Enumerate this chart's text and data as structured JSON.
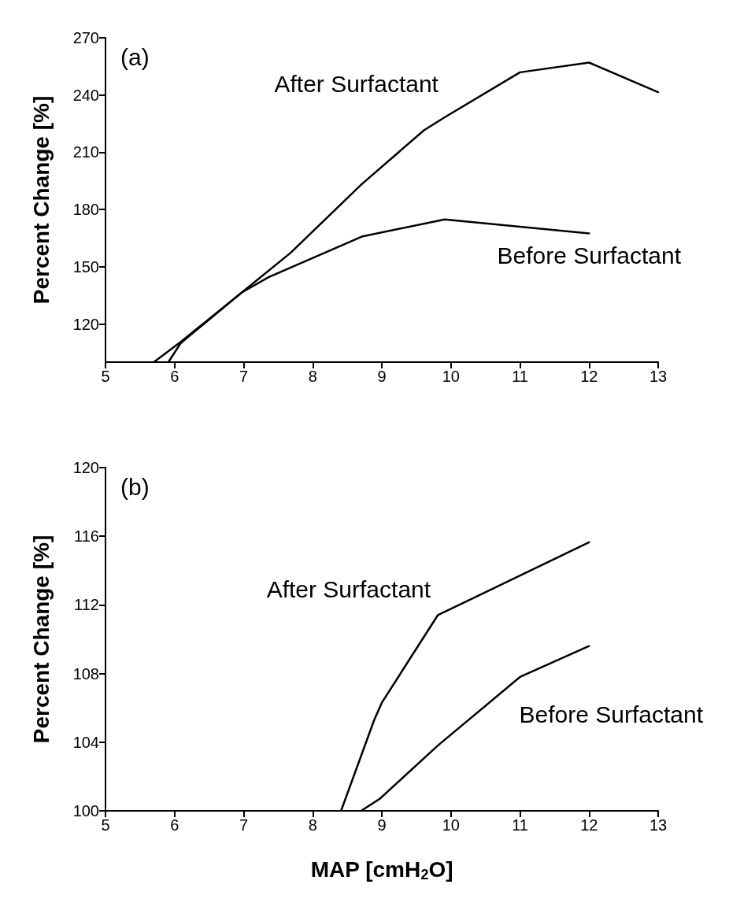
{
  "chart_data": [
    {
      "type": "line",
      "title": "(a)",
      "ylabel": "Percent Change [%]",
      "xlim": [
        5,
        13
      ],
      "xticks": [
        5,
        6,
        7,
        8,
        9,
        10,
        11,
        12,
        13
      ],
      "ylim": [
        100,
        270
      ],
      "yticks": [
        120,
        150,
        180,
        210,
        240,
        270
      ],
      "grid": false,
      "marker": "none",
      "line_style": "solid",
      "series": [
        {
          "name": "After Surfactant",
          "color": "#000000",
          "x": [
            5.91,
            6.09,
            6.97,
            7.68,
            8.71,
            9.61,
            9.91,
            11.0,
            12.0,
            13.0
          ],
          "values": [
            100,
            110,
            136.4,
            157.3,
            193.3,
            221.5,
            228.3,
            251.9,
            257,
            241.5
          ]
        },
        {
          "name": "Before Surfactant",
          "color": "#000000",
          "x": [
            5.7,
            6.09,
            6.97,
            7.36,
            8.71,
            9.91,
            12.0
          ],
          "values": [
            100,
            110.6,
            136.4,
            144.5,
            165.8,
            174.8,
            167.5
          ]
        }
      ]
    },
    {
      "type": "line",
      "title": "(b)",
      "xlabel": "MAP [cmH$_{2}$O]",
      "ylabel": "Percent Change [%]",
      "xlim": [
        5,
        13
      ],
      "xticks": [
        5,
        6,
        7,
        8,
        9,
        10,
        11,
        12,
        13
      ],
      "ylim": [
        100,
        120
      ],
      "yticks": [
        100,
        104,
        108,
        112,
        116,
        120
      ],
      "grid": false,
      "marker": "none",
      "line_style": "solid",
      "series": [
        {
          "name": "After Surfactant",
          "color": "#000000",
          "x": [
            8.41,
            8.89,
            9.0,
            9.81,
            12.0
          ],
          "values": [
            100,
            105.3,
            106.3,
            111.4,
            115.65
          ]
        },
        {
          "name": "Before Surfactant",
          "color": "#000000",
          "x": [
            8.7,
            8.97,
            9.81,
            11.0,
            12.0
          ],
          "values": [
            100,
            100.7,
            103.8,
            107.8,
            109.6
          ]
        }
      ]
    }
  ]
}
